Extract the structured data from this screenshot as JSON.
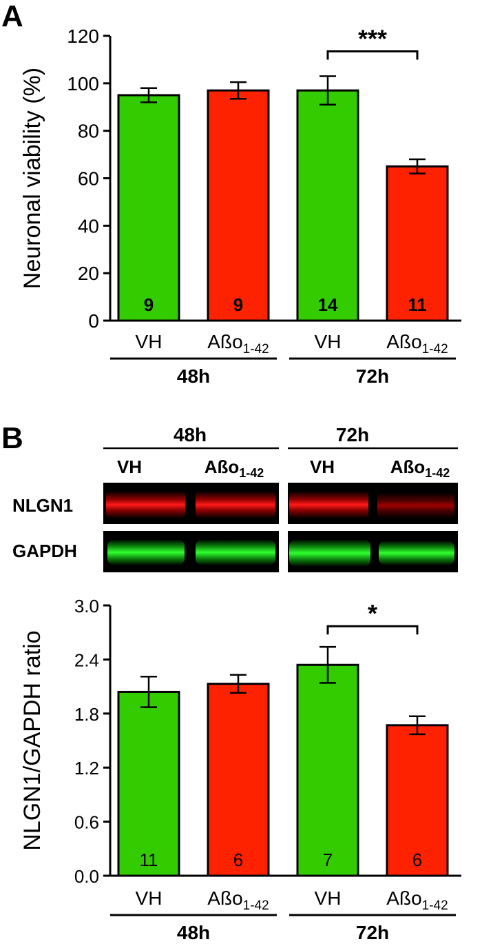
{
  "panels": {
    "a": "A",
    "b": "B"
  },
  "colors": {
    "vh": "#33cc00",
    "abo": "#ff2200"
  },
  "chart_data": [
    {
      "type": "bar",
      "panel": "A",
      "ylabel": "Neuronal viability (%)",
      "ylim": [
        0,
        120
      ],
      "yticks": [
        0,
        20,
        40,
        60,
        80,
        100,
        120
      ],
      "categories": [
        "VH",
        "Aßo1-42",
        "VH",
        "Aßo1-42"
      ],
      "groups": [
        "48h",
        "72h"
      ],
      "values": [
        95,
        97,
        97,
        65
      ],
      "errors": [
        3,
        3.5,
        6,
        3
      ],
      "n_labels": [
        "9",
        "9",
        "14",
        "11"
      ],
      "significance": {
        "from": 2,
        "to": 3,
        "label": "***"
      }
    },
    {
      "type": "bar",
      "panel": "B",
      "ylabel": "NLGN1/GAPDH ratio",
      "ylim": [
        0,
        3.0
      ],
      "yticks": [
        "0.0",
        "0.6",
        "1.2",
        "1.8",
        "2.4",
        "3.0"
      ],
      "categories": [
        "VH",
        "Aßo1-42",
        "VH",
        "Aßo1-42"
      ],
      "groups": [
        "48h",
        "72h"
      ],
      "values": [
        2.04,
        2.13,
        2.34,
        1.67
      ],
      "errors": [
        0.17,
        0.1,
        0.2,
        0.1
      ],
      "n_labels": [
        "11",
        "6",
        "7",
        "6"
      ],
      "significance": {
        "from": 2,
        "to": 3,
        "label": "*"
      }
    }
  ],
  "blot": {
    "groups": [
      "48h",
      "72h"
    ],
    "lanes": [
      "VH",
      "Aßo1-42",
      "VH",
      "Aßo1-42"
    ],
    "rows": [
      "NLGN1",
      "GAPDH"
    ]
  }
}
